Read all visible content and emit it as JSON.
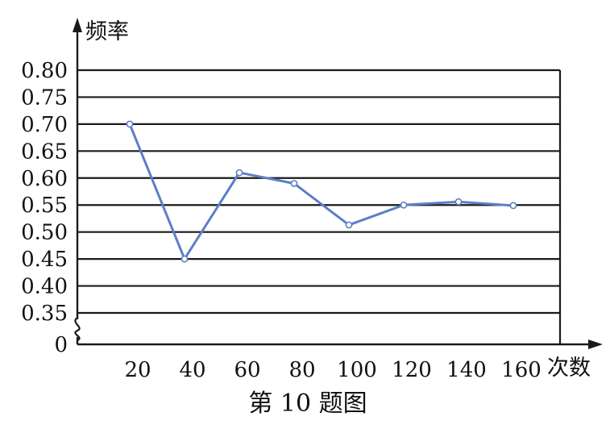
{
  "chart_data": {
    "type": "line",
    "title": "",
    "caption": "第 10 题图",
    "xlabel": "次数",
    "ylabel": "频率",
    "x": [
      20,
      40,
      60,
      80,
      100,
      120,
      140,
      160
    ],
    "series": [
      {
        "values": [
          0.7,
          0.45,
          0.61,
          0.59,
          0.513,
          0.55,
          0.556,
          0.549
        ]
      }
    ],
    "y_ticks": [
      0.35,
      0.4,
      0.45,
      0.5,
      0.55,
      0.6,
      0.65,
      0.7,
      0.75,
      0.8
    ],
    "y_tick_labels": [
      "0.35",
      "0.40",
      "0.45",
      "0.50",
      "0.55",
      "0.60",
      "0.65",
      "0.70",
      "0.75",
      "0.80"
    ],
    "y_origin_label": "0",
    "x_tick_labels": [
      "20",
      "40",
      "60",
      "80",
      "100",
      "120",
      "140",
      "160"
    ],
    "ylim": [
      0.35,
      0.8
    ],
    "y_axis_break": true,
    "grid": "horizontal",
    "colors": {
      "line": "#5b7fc7",
      "grid": "#1a1a1a"
    }
  }
}
